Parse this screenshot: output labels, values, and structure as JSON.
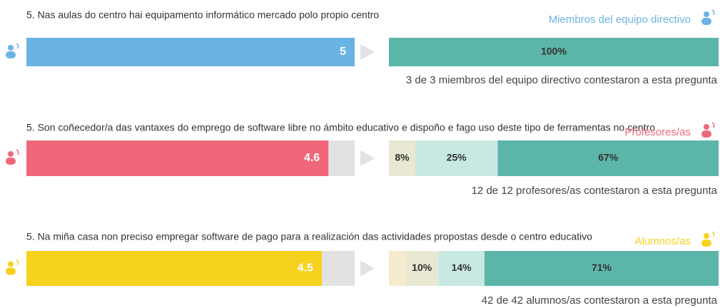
{
  "score_lim": [
    0,
    5
  ],
  "sections": [
    {
      "question": "5. Nas aulas do centro hai equipamento informático mercado polo propio centro",
      "group": "Miembros del equipo directivo",
      "color": "#6ab4e4",
      "score": 5,
      "segments": {
        "values": [
          100
        ],
        "value_labels": [
          "100%"
        ],
        "colors": [
          "#5bb5a8"
        ]
      },
      "footer": "3 de 3 miembros del equipo directivo contestaron a esta pregunta"
    },
    {
      "question": "5. Son coñecedor/a das vantaxes do emprego de software libre no ámbito educativo e dispoño e fago uso deste tipo de ferramentas no centro",
      "group": "Profesores/as",
      "color": "#f0677a",
      "score": 4.6,
      "segments": {
        "values": [
          8,
          25,
          67
        ],
        "value_labels": [
          "8%",
          "25%",
          "67%"
        ],
        "colors": [
          "#e9e8d2",
          "#c7e9e1",
          "#5bb5a8"
        ]
      },
      "footer": "12 de 12 profesores/as contestaron a esta pregunta"
    },
    {
      "question": "5. Na miña casa non preciso empregar software de pago para a realización das actividades propostas desde o centro educativo",
      "group": "Alumnos/as",
      "color": "#f5d21e",
      "score": 4.5,
      "segments": {
        "values": [
          5,
          10,
          14,
          71
        ],
        "value_labels": [
          null,
          "10%",
          "14%",
          "71%"
        ],
        "colors": [
          "#f6ebcf",
          "#e9e8d2",
          "#c7e9e1",
          "#5bb5a8"
        ]
      },
      "footer": "42 de 42 alumnos/as contestaron a esta pregunta"
    }
  ]
}
